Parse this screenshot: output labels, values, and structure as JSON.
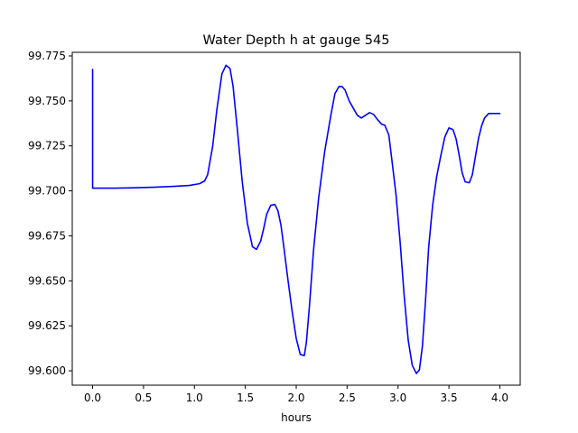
{
  "chart_data": {
    "type": "line",
    "title": "Water Depth h at gauge 545",
    "xlabel": "hours",
    "ylabel": "",
    "xlim": [
      -0.2,
      4.2
    ],
    "ylim": [
      99.592,
      99.777
    ],
    "xticks": [
      0.0,
      0.5,
      1.0,
      1.5,
      2.0,
      2.5,
      3.0,
      3.5,
      4.0
    ],
    "xtick_labels": [
      "0.0",
      "0.5",
      "1.0",
      "1.5",
      "2.0",
      "2.5",
      "3.0",
      "3.5",
      "4.0"
    ],
    "yticks": [
      99.6,
      99.625,
      99.65,
      99.675,
      99.7,
      99.725,
      99.75,
      99.775
    ],
    "ytick_labels": [
      "99.600",
      "99.625",
      "99.650",
      "99.675",
      "99.700",
      "99.725",
      "99.750",
      "99.775"
    ],
    "grid": false,
    "series": [
      {
        "color": "#0000ff",
        "x": [
          0.0,
          0.0,
          0.05,
          0.2,
          0.4,
          0.6,
          0.8,
          0.95,
          1.05,
          1.1,
          1.13,
          1.18,
          1.22,
          1.27,
          1.31,
          1.35,
          1.38,
          1.42,
          1.47,
          1.52,
          1.57,
          1.61,
          1.65,
          1.68,
          1.71,
          1.75,
          1.79,
          1.82,
          1.85,
          1.88,
          1.92,
          1.96,
          2.0,
          2.04,
          2.08,
          2.1,
          2.13,
          2.17,
          2.22,
          2.28,
          2.34,
          2.38,
          2.42,
          2.45,
          2.48,
          2.52,
          2.56,
          2.6,
          2.64,
          2.68,
          2.72,
          2.76,
          2.8,
          2.84,
          2.87,
          2.91,
          2.94,
          2.98,
          3.02,
          3.06,
          3.1,
          3.14,
          3.18,
          3.21,
          3.24,
          3.27,
          3.3,
          3.34,
          3.38,
          3.42,
          3.46,
          3.5,
          3.54,
          3.57,
          3.6,
          3.63,
          3.66,
          3.7,
          3.73,
          3.76,
          3.79,
          3.82,
          3.85,
          3.89,
          3.93,
          3.97,
          4.0
        ],
        "y": [
          99.7675,
          99.7015,
          99.7015,
          99.7015,
          99.7017,
          99.702,
          99.7025,
          99.703,
          99.704,
          99.7055,
          99.709,
          99.725,
          99.745,
          99.765,
          99.7698,
          99.768,
          99.758,
          99.735,
          99.705,
          99.682,
          99.669,
          99.6675,
          99.672,
          99.679,
          99.687,
          99.692,
          99.6925,
          99.689,
          99.681,
          99.668,
          99.65,
          99.633,
          99.618,
          99.609,
          99.6085,
          99.616,
          99.636,
          99.667,
          99.696,
          99.722,
          99.742,
          99.754,
          99.758,
          99.758,
          99.756,
          99.75,
          99.746,
          99.742,
          99.7405,
          99.742,
          99.7435,
          99.7425,
          99.7395,
          99.737,
          99.7365,
          99.731,
          99.717,
          99.698,
          99.672,
          99.642,
          99.617,
          99.603,
          99.5985,
          99.6005,
          99.614,
          99.639,
          99.668,
          99.692,
          99.708,
          99.7195,
          99.73,
          99.735,
          99.734,
          99.729,
          99.72,
          99.71,
          99.705,
          99.7045,
          99.709,
          99.719,
          99.729,
          99.736,
          99.7405,
          99.743,
          99.743,
          99.743,
          99.743
        ]
      }
    ]
  }
}
